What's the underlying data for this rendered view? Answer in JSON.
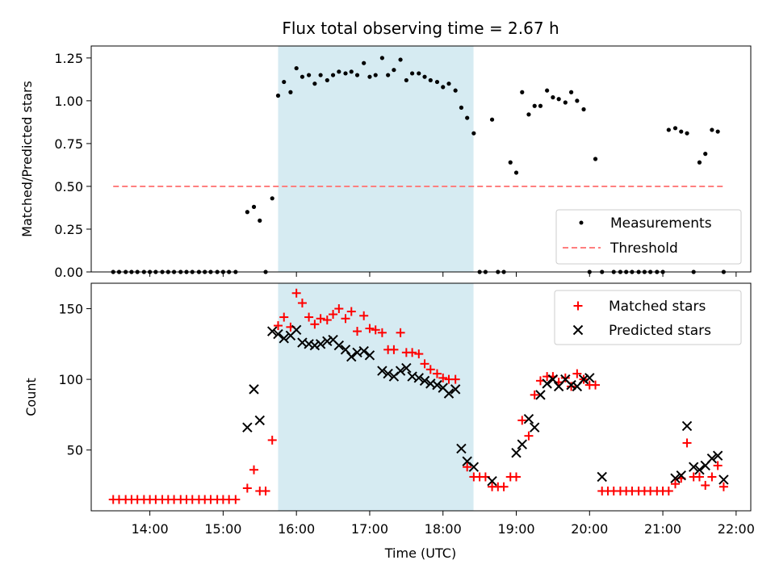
{
  "figure": {
    "title": "Flux total observing time = 2.67 h"
  },
  "colors": {
    "shade": "#add8e6",
    "threshold": "#ff7f7f",
    "matched": "#ff0000",
    "predicted": "#000000",
    "measurement": "#000000"
  },
  "chart_data": [
    {
      "type": "scatter",
      "title": "Flux total observing time = 2.67 h",
      "xlabel": "",
      "ylabel": "Matched/Predicted stars",
      "xlim": [
        13.2,
        22.2
      ],
      "ylim": [
        0,
        1.32
      ],
      "yticks": [
        0.0,
        0.25,
        0.5,
        0.75,
        1.0,
        1.25
      ],
      "yticklabels": [
        "0.00",
        "0.25",
        "0.50",
        "0.75",
        "1.00",
        "1.25"
      ],
      "shaded_range": [
        "15:45",
        "18:25"
      ],
      "legend": {
        "position": "lower-right",
        "entries": [
          "Measurements",
          "Threshold"
        ]
      },
      "threshold": {
        "name": "Threshold",
        "y": 0.5,
        "x": [
          13.5,
          21.85
        ]
      },
      "series": [
        {
          "name": "Measurements",
          "x": [
            13.5,
            13.58,
            13.67,
            13.75,
            13.83,
            13.92,
            14.0,
            14.08,
            14.17,
            14.25,
            14.33,
            14.42,
            14.5,
            14.58,
            14.67,
            14.75,
            14.83,
            14.92,
            15.0,
            15.08,
            15.17,
            15.33,
            15.42,
            15.5,
            15.58,
            15.67,
            15.75,
            15.83,
            15.92,
            16.0,
            16.08,
            16.17,
            16.25,
            16.33,
            16.42,
            16.5,
            16.58,
            16.67,
            16.75,
            16.83,
            16.92,
            17.0,
            17.08,
            17.17,
            17.25,
            17.33,
            17.42,
            17.5,
            17.58,
            17.67,
            17.75,
            17.83,
            17.92,
            18.0,
            18.08,
            18.17,
            18.25,
            18.33,
            18.42,
            18.5,
            18.58,
            18.67,
            18.75,
            18.83,
            18.92,
            19.0,
            19.08,
            19.17,
            19.25,
            19.33,
            19.42,
            19.5,
            19.58,
            19.67,
            19.75,
            19.83,
            19.92,
            20.0,
            20.08,
            20.17,
            20.33,
            20.42,
            20.5,
            20.58,
            20.67,
            20.75,
            20.83,
            20.92,
            21.0,
            21.08,
            21.17,
            21.25,
            21.33,
            21.42,
            21.5,
            21.58,
            21.67,
            21.75,
            21.83
          ],
          "y": [
            0,
            0,
            0,
            0,
            0,
            0,
            0,
            0,
            0,
            0,
            0,
            0,
            0,
            0,
            0,
            0,
            0,
            0,
            0,
            0,
            0,
            0.35,
            0.38,
            0.3,
            0,
            0.43,
            1.03,
            1.11,
            1.05,
            1.19,
            1.14,
            1.15,
            1.1,
            1.15,
            1.12,
            1.15,
            1.17,
            1.16,
            1.17,
            1.15,
            1.22,
            1.14,
            1.15,
            1.25,
            1.15,
            1.18,
            1.24,
            1.12,
            1.16,
            1.16,
            1.14,
            1.12,
            1.11,
            1.08,
            1.1,
            1.06,
            0.96,
            0.9,
            0.81,
            0,
            0,
            0.89,
            0,
            0,
            0.64,
            0.58,
            1.05,
            0.92,
            0.97,
            0.97,
            1.06,
            1.02,
            1.01,
            0.99,
            1.05,
            1.0,
            0.95,
            0,
            0.66,
            0,
            0,
            0,
            0,
            0,
            0,
            0,
            0,
            0,
            0,
            0.83,
            0.84,
            0.82,
            0.81,
            0,
            0.64,
            0.69,
            0.83,
            0.82,
            0
          ]
        }
      ]
    },
    {
      "type": "scatter",
      "title": "",
      "xlabel": "Time (UTC)",
      "ylabel": "Count",
      "xlim": [
        13.2,
        22.2
      ],
      "ylim": [
        7,
        168
      ],
      "xticks": [
        14,
        15,
        16,
        17,
        18,
        19,
        20,
        21,
        22
      ],
      "xticklabels": [
        "14:00",
        "15:00",
        "16:00",
        "17:00",
        "18:00",
        "19:00",
        "20:00",
        "21:00",
        "22:00"
      ],
      "yticks": [
        50,
        100,
        150
      ],
      "yticklabels": [
        "50",
        "100",
        "150"
      ],
      "shaded_range": [
        "15:45",
        "18:25"
      ],
      "legend": {
        "position": "top-right",
        "entries": [
          "Matched stars",
          "Predicted stars"
        ]
      },
      "series": [
        {
          "name": "Matched stars",
          "marker": "+",
          "x": [
            13.5,
            13.58,
            13.67,
            13.75,
            13.83,
            13.92,
            14.0,
            14.08,
            14.17,
            14.25,
            14.33,
            14.42,
            14.5,
            14.58,
            14.67,
            14.75,
            14.83,
            14.92,
            15.0,
            15.08,
            15.17,
            15.33,
            15.42,
            15.5,
            15.58,
            15.67,
            15.75,
            15.83,
            15.92,
            16.0,
            16.08,
            16.17,
            16.25,
            16.33,
            16.42,
            16.5,
            16.58,
            16.67,
            16.75,
            16.83,
            16.92,
            17.0,
            17.08,
            17.17,
            17.25,
            17.33,
            17.42,
            17.5,
            17.58,
            17.67,
            17.75,
            17.83,
            17.92,
            18.0,
            18.08,
            18.17,
            18.33,
            18.42,
            18.5,
            18.58,
            18.67,
            18.75,
            18.83,
            18.92,
            19.0,
            19.08,
            19.17,
            19.25,
            19.33,
            19.42,
            19.5,
            19.58,
            19.67,
            19.75,
            19.83,
            19.92,
            20.0,
            20.08,
            20.17,
            20.25,
            20.33,
            20.42,
            20.5,
            20.58,
            20.67,
            20.75,
            20.83,
            20.92,
            21.0,
            21.08,
            21.17,
            21.25,
            21.33,
            21.42,
            21.5,
            21.58,
            21.67,
            21.75,
            21.83
          ],
          "y": [
            15,
            15,
            15,
            15,
            15,
            15,
            15,
            15,
            15,
            15,
            15,
            15,
            15,
            15,
            15,
            15,
            15,
            15,
            15,
            15,
            15,
            23,
            36,
            21,
            21,
            57,
            138,
            144,
            137,
            161,
            154,
            144,
            139,
            143,
            142,
            146,
            150,
            143,
            148,
            134,
            145,
            136,
            135,
            133,
            121,
            121,
            133,
            119,
            119,
            118,
            111,
            107,
            104,
            101,
            100,
            100,
            38,
            31,
            31,
            31,
            24,
            24,
            24,
            31,
            31,
            71,
            60,
            89,
            99,
            102,
            102,
            98,
            101,
            95,
            104,
            100,
            96,
            96,
            21,
            21,
            21,
            21,
            21,
            21,
            21,
            21,
            21,
            21,
            21,
            21,
            26,
            30,
            55,
            31,
            31,
            25,
            31,
            39,
            24
          ]
        },
        {
          "name": "Predicted stars",
          "marker": "x",
          "x": [
            15.33,
            15.42,
            15.5,
            15.67,
            15.75,
            15.83,
            15.92,
            16.0,
            16.08,
            16.17,
            16.25,
            16.33,
            16.42,
            16.5,
            16.58,
            16.67,
            16.75,
            16.83,
            16.92,
            17.0,
            17.17,
            17.25,
            17.33,
            17.42,
            17.5,
            17.58,
            17.67,
            17.75,
            17.83,
            17.92,
            18.0,
            18.08,
            18.17,
            18.25,
            18.33,
            18.42,
            18.67,
            19.0,
            19.08,
            19.17,
            19.25,
            19.33,
            19.42,
            19.5,
            19.58,
            19.67,
            19.75,
            19.83,
            19.92,
            20.0,
            20.17,
            21.17,
            21.25,
            21.33,
            21.42,
            21.5,
            21.58,
            21.67,
            21.75,
            21.83
          ],
          "y": [
            66,
            93,
            71,
            134,
            132,
            129,
            131,
            135,
            126,
            125,
            124,
            125,
            127,
            128,
            124,
            121,
            116,
            119,
            120,
            117,
            106,
            104,
            102,
            106,
            108,
            102,
            101,
            99,
            97,
            96,
            94,
            90,
            93,
            51,
            42,
            38,
            28,
            48,
            54,
            72,
            66,
            89,
            97,
            100,
            95,
            100,
            96,
            95,
            100,
            101,
            31,
            30,
            32,
            67,
            38,
            36,
            39,
            44,
            46,
            29
          ]
        }
      ]
    }
  ]
}
